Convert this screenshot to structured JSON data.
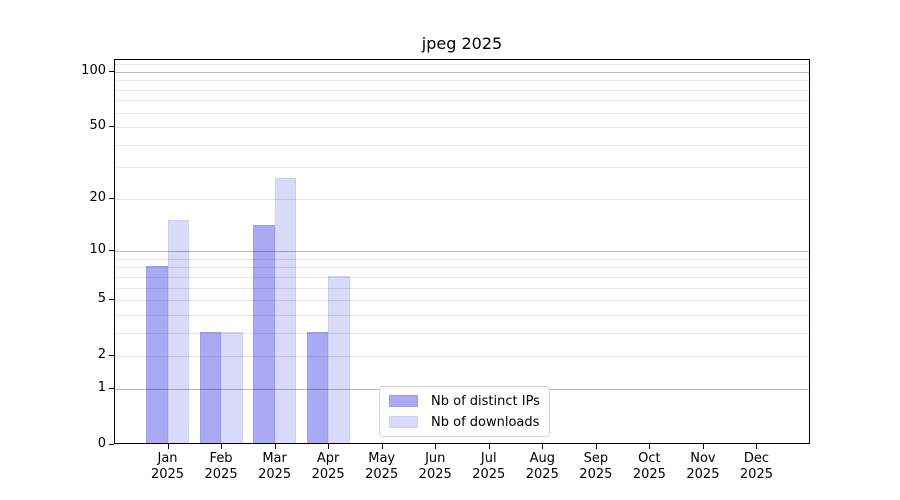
{
  "title": "jpeg 2025",
  "chart_data": {
    "type": "bar",
    "title": "jpeg 2025",
    "categories": [
      "Jan",
      "Feb",
      "Mar",
      "Apr",
      "May",
      "Jun",
      "Jul",
      "Aug",
      "Sep",
      "Oct",
      "Nov",
      "Dec"
    ],
    "category_year": "2025",
    "series": [
      {
        "name": "Nb of distinct IPs",
        "color": "#a9a9f4",
        "edge_color": "#9d9dee",
        "values": [
          8,
          3,
          14,
          3,
          0,
          0,
          0,
          0,
          0,
          0,
          0,
          0
        ]
      },
      {
        "name": "Nb of downloads",
        "color": "#d9d9f9",
        "edge_color": "#cfcff4",
        "values": [
          15,
          3,
          26,
          7,
          0,
          0,
          0,
          0,
          0,
          0,
          0,
          0
        ]
      }
    ],
    "y_axis": {
      "scale": "log1p",
      "tick_labels": [
        100,
        50,
        20,
        10,
        5,
        2,
        1,
        0
      ],
      "major_gridlines": [
        1,
        10,
        100
      ],
      "light_gridlines": [
        2,
        3,
        4,
        5,
        6,
        7,
        8,
        9,
        20,
        30,
        40,
        50,
        60,
        70,
        80,
        90,
        110
      ],
      "ylim": [
        0,
        116
      ]
    },
    "legend_position": "inside-bottom-center",
    "grid": true
  },
  "colors": {
    "background": "#ffffff",
    "spine": "#000000",
    "grid_major": "#bababa",
    "grid_light": "#e8e8e8",
    "legend_border": "#d2d2d2"
  }
}
